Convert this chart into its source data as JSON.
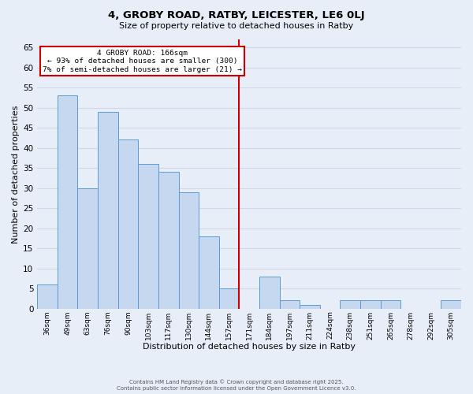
{
  "title": "4, GROBY ROAD, RATBY, LEICESTER, LE6 0LJ",
  "subtitle": "Size of property relative to detached houses in Ratby",
  "xlabel": "Distribution of detached houses by size in Ratby",
  "ylabel": "Number of detached properties",
  "categories": [
    "36sqm",
    "49sqm",
    "63sqm",
    "76sqm",
    "90sqm",
    "103sqm",
    "117sqm",
    "130sqm",
    "144sqm",
    "157sqm",
    "171sqm",
    "184sqm",
    "197sqm",
    "211sqm",
    "224sqm",
    "238sqm",
    "251sqm",
    "265sqm",
    "278sqm",
    "292sqm",
    "305sqm"
  ],
  "values": [
    6,
    53,
    30,
    49,
    42,
    36,
    34,
    29,
    18,
    5,
    0,
    8,
    2,
    1,
    0,
    2,
    2,
    2,
    0,
    0,
    2
  ],
  "bar_color": "#c5d8f0",
  "bar_edge_color": "#5b9bd5",
  "bar_width": 1.0,
  "ylim": [
    0,
    67
  ],
  "yticks": [
    0,
    5,
    10,
    15,
    20,
    25,
    30,
    35,
    40,
    45,
    50,
    55,
    60,
    65
  ],
  "vline_x_index": 10,
  "vline_color": "#cc0000",
  "annotation_title": "4 GROBY ROAD: 166sqm",
  "annotation_line1": "← 93% of detached houses are smaller (300)",
  "annotation_line2": "7% of semi-detached houses are larger (21) →",
  "annotation_box_color": "#ffffff",
  "annotation_box_edge": "#cc0000",
  "grid_color": "#d0d8e8",
  "background_color": "#e8eef8",
  "footer1": "Contains HM Land Registry data © Crown copyright and database right 2025.",
  "footer2": "Contains public sector information licensed under the Open Government Licence v3.0."
}
